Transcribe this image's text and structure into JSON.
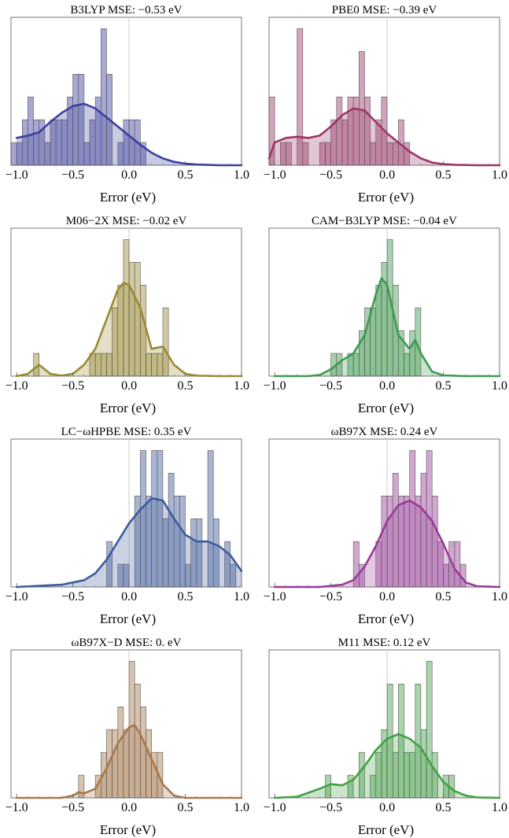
{
  "figure": {
    "xlabel": "Error (eV)",
    "xticks": [
      "−1.0",
      "−0.5",
      "0.0",
      "0.5",
      "1.0"
    ]
  },
  "chart_data": [
    {
      "type": "histogram",
      "title": "B3LYP MSE: −0.53 eV",
      "color": "#3b3f9e",
      "bin_width": 0.05,
      "xlim": [
        -1.05,
        1.0
      ],
      "xticks": [
        -1.0,
        -0.5,
        0.0,
        0.5,
        1.0
      ],
      "xlabel": "Error (eV)",
      "ymax": 6.5,
      "bins": [
        {
          "x": -1.05,
          "count": 1
        },
        {
          "x": -1.0,
          "count": 1
        },
        {
          "x": -0.95,
          "count": 2
        },
        {
          "x": -0.9,
          "count": 3
        },
        {
          "x": -0.85,
          "count": 2
        },
        {
          "x": -0.8,
          "count": 2
        },
        {
          "x": -0.75,
          "count": 1
        },
        {
          "x": -0.7,
          "count": 2
        },
        {
          "x": -0.65,
          "count": 2
        },
        {
          "x": -0.6,
          "count": 2
        },
        {
          "x": -0.55,
          "count": 3
        },
        {
          "x": -0.5,
          "count": 4
        },
        {
          "x": -0.45,
          "count": 4
        },
        {
          "x": -0.4,
          "count": 1
        },
        {
          "x": -0.35,
          "count": 2
        },
        {
          "x": -0.3,
          "count": 3
        },
        {
          "x": -0.25,
          "count": 6
        },
        {
          "x": -0.2,
          "count": 4
        },
        {
          "x": -0.1,
          "count": 1
        },
        {
          "x": -0.05,
          "count": 2
        },
        {
          "x": 0.0,
          "count": 2
        },
        {
          "x": 0.05,
          "count": 2
        },
        {
          "x": 0.1,
          "count": 1
        }
      ],
      "density": [
        [
          -1.0,
          1.2
        ],
        [
          -0.9,
          1.3
        ],
        [
          -0.8,
          1.45
        ],
        [
          -0.7,
          1.9
        ],
        [
          -0.6,
          2.3
        ],
        [
          -0.5,
          2.6
        ],
        [
          -0.4,
          2.7
        ],
        [
          -0.3,
          2.5
        ],
        [
          -0.2,
          2.1
        ],
        [
          -0.1,
          1.7
        ],
        [
          0.0,
          1.3
        ],
        [
          0.1,
          0.9
        ],
        [
          0.2,
          0.55
        ],
        [
          0.3,
          0.3
        ],
        [
          0.4,
          0.15
        ],
        [
          0.5,
          0.07
        ],
        [
          0.6,
          0.03
        ],
        [
          0.8,
          0.0
        ],
        [
          1.0,
          0.0
        ]
      ]
    },
    {
      "type": "histogram",
      "title": "PBE0 MSE: −0.39 eV",
      "color": "#9c3468",
      "bin_width": 0.05,
      "xlim": [
        -1.05,
        1.0
      ],
      "xticks": [
        -1.0,
        -0.5,
        0.0,
        0.5,
        1.0
      ],
      "xlabel": "Error (eV)",
      "ymax": 6.5,
      "bins": [
        {
          "x": -1.05,
          "count": 3
        },
        {
          "x": -0.95,
          "count": 1
        },
        {
          "x": -0.9,
          "count": 1
        },
        {
          "x": -0.8,
          "count": 6
        },
        {
          "x": -0.75,
          "count": 1
        },
        {
          "x": -0.6,
          "count": 1
        },
        {
          "x": -0.55,
          "count": 1
        },
        {
          "x": -0.5,
          "count": 2
        },
        {
          "x": -0.45,
          "count": 3
        },
        {
          "x": -0.4,
          "count": 2
        },
        {
          "x": -0.35,
          "count": 3
        },
        {
          "x": -0.3,
          "count": 3
        },
        {
          "x": -0.25,
          "count": 5
        },
        {
          "x": -0.2,
          "count": 3
        },
        {
          "x": -0.15,
          "count": 1
        },
        {
          "x": -0.1,
          "count": 2
        },
        {
          "x": -0.05,
          "count": 3
        },
        {
          "x": 0.0,
          "count": 1
        },
        {
          "x": 0.05,
          "count": 1
        },
        {
          "x": 0.1,
          "count": 2
        },
        {
          "x": 0.15,
          "count": 1
        }
      ],
      "density": [
        [
          -1.05,
          0.3
        ],
        [
          -1.0,
          1.0
        ],
        [
          -0.9,
          1.2
        ],
        [
          -0.8,
          1.25
        ],
        [
          -0.7,
          1.2
        ],
        [
          -0.6,
          1.3
        ],
        [
          -0.5,
          1.7
        ],
        [
          -0.4,
          2.2
        ],
        [
          -0.3,
          2.5
        ],
        [
          -0.2,
          2.4
        ],
        [
          -0.1,
          1.9
        ],
        [
          0.0,
          1.4
        ],
        [
          0.1,
          1.0
        ],
        [
          0.2,
          0.6
        ],
        [
          0.3,
          0.3
        ],
        [
          0.4,
          0.12
        ],
        [
          0.5,
          0.05
        ],
        [
          0.6,
          0.02
        ],
        [
          0.8,
          0.0
        ],
        [
          1.0,
          0.0
        ]
      ]
    },
    {
      "type": "histogram",
      "title": "M06−2X MSE: −0.02 eV",
      "color": "#9a8a30",
      "bin_width": 0.05,
      "xlim": [
        -1.05,
        1.0
      ],
      "xticks": [
        -1.0,
        -0.5,
        0.0,
        0.5,
        1.0
      ],
      "xlabel": "Error (eV)",
      "ymax": 6.5,
      "bins": [
        {
          "x": -0.85,
          "count": 1
        },
        {
          "x": -0.35,
          "count": 1
        },
        {
          "x": -0.3,
          "count": 1
        },
        {
          "x": -0.25,
          "count": 1
        },
        {
          "x": -0.2,
          "count": 1
        },
        {
          "x": -0.15,
          "count": 3
        },
        {
          "x": -0.1,
          "count": 4
        },
        {
          "x": -0.05,
          "count": 6
        },
        {
          "x": 0.0,
          "count": 5
        },
        {
          "x": 0.05,
          "count": 5
        },
        {
          "x": 0.1,
          "count": 4
        },
        {
          "x": 0.15,
          "count": 1
        },
        {
          "x": 0.2,
          "count": 1
        },
        {
          "x": 0.25,
          "count": 1
        },
        {
          "x": 0.3,
          "count": 3
        }
      ],
      "density": [
        [
          -1.0,
          0.0
        ],
        [
          -0.9,
          0.1
        ],
        [
          -0.8,
          0.5
        ],
        [
          -0.7,
          0.1
        ],
        [
          -0.6,
          0.02
        ],
        [
          -0.5,
          0.1
        ],
        [
          -0.4,
          0.5
        ],
        [
          -0.3,
          1.2
        ],
        [
          -0.2,
          2.5
        ],
        [
          -0.1,
          3.8
        ],
        [
          -0.05,
          4.1
        ],
        [
          0.0,
          4.0
        ],
        [
          0.1,
          3.0
        ],
        [
          0.2,
          1.2
        ],
        [
          0.3,
          1.3
        ],
        [
          0.4,
          0.5
        ],
        [
          0.5,
          0.1
        ],
        [
          0.6,
          0.02
        ],
        [
          0.8,
          0.0
        ],
        [
          1.0,
          0.0
        ]
      ]
    },
    {
      "type": "histogram",
      "title": "CAM−B3LYP MSE: −0.04 eV",
      "color": "#3e9a4e",
      "bin_width": 0.05,
      "xlim": [
        -1.05,
        1.0
      ],
      "xticks": [
        -1.0,
        -0.5,
        0.0,
        0.5,
        1.0
      ],
      "xlabel": "Error (eV)",
      "ymax": 6.5,
      "bins": [
        {
          "x": -0.5,
          "count": 1
        },
        {
          "x": -0.45,
          "count": 1
        },
        {
          "x": -0.35,
          "count": 1
        },
        {
          "x": -0.3,
          "count": 1
        },
        {
          "x": -0.25,
          "count": 2
        },
        {
          "x": -0.2,
          "count": 3
        },
        {
          "x": -0.15,
          "count": 3
        },
        {
          "x": -0.1,
          "count": 4
        },
        {
          "x": -0.05,
          "count": 5
        },
        {
          "x": 0.0,
          "count": 6
        },
        {
          "x": 0.05,
          "count": 4
        },
        {
          "x": 0.1,
          "count": 2
        },
        {
          "x": 0.15,
          "count": 1
        },
        {
          "x": 0.2,
          "count": 2
        },
        {
          "x": 0.25,
          "count": 3
        }
      ],
      "density": [
        [
          -1.0,
          0.0
        ],
        [
          -0.7,
          0.0
        ],
        [
          -0.6,
          0.05
        ],
        [
          -0.5,
          0.3
        ],
        [
          -0.4,
          0.7
        ],
        [
          -0.3,
          1.0
        ],
        [
          -0.2,
          1.8
        ],
        [
          -0.1,
          3.6
        ],
        [
          -0.05,
          4.3
        ],
        [
          0.0,
          4.0
        ],
        [
          0.1,
          1.8
        ],
        [
          0.2,
          1.2
        ],
        [
          0.25,
          1.6
        ],
        [
          0.3,
          1.0
        ],
        [
          0.4,
          0.2
        ],
        [
          0.5,
          0.03
        ],
        [
          0.7,
          0.0
        ],
        [
          1.0,
          0.0
        ]
      ]
    },
    {
      "type": "histogram",
      "title": "LC−ωHPBE MSE: 0.35 eV",
      "color": "#3d5b9c",
      "bin_width": 0.05,
      "xlim": [
        -1.05,
        1.0
      ],
      "xticks": [
        -1.0,
        -0.5,
        0.0,
        0.5,
        1.0
      ],
      "xlabel": "Error (eV)",
      "ymax": 6.5,
      "bins": [
        {
          "x": -0.2,
          "count": 2
        },
        {
          "x": -0.1,
          "count": 1
        },
        {
          "x": -0.05,
          "count": 1
        },
        {
          "x": 0.05,
          "count": 4
        },
        {
          "x": 0.1,
          "count": 6
        },
        {
          "x": 0.15,
          "count": 4
        },
        {
          "x": 0.2,
          "count": 6
        },
        {
          "x": 0.25,
          "count": 6
        },
        {
          "x": 0.3,
          "count": 3
        },
        {
          "x": 0.35,
          "count": 5
        },
        {
          "x": 0.4,
          "count": 4
        },
        {
          "x": 0.45,
          "count": 4
        },
        {
          "x": 0.5,
          "count": 1
        },
        {
          "x": 0.55,
          "count": 3
        },
        {
          "x": 0.6,
          "count": 3
        },
        {
          "x": 0.7,
          "count": 6
        },
        {
          "x": 0.75,
          "count": 3
        },
        {
          "x": 0.85,
          "count": 2
        },
        {
          "x": 0.9,
          "count": 1
        }
      ],
      "density": [
        [
          -1.0,
          0.0
        ],
        [
          -0.6,
          0.1
        ],
        [
          -0.4,
          0.3
        ],
        [
          -0.3,
          0.6
        ],
        [
          -0.2,
          1.2
        ],
        [
          -0.1,
          2.0
        ],
        [
          0.0,
          2.8
        ],
        [
          0.1,
          3.4
        ],
        [
          0.2,
          3.9
        ],
        [
          0.3,
          3.8
        ],
        [
          0.4,
          3.0
        ],
        [
          0.5,
          2.3
        ],
        [
          0.6,
          2.0
        ],
        [
          0.7,
          2.0
        ],
        [
          0.8,
          1.8
        ],
        [
          0.9,
          1.4
        ],
        [
          1.0,
          0.7
        ]
      ]
    },
    {
      "type": "histogram",
      "title": "ωB97X MSE: 0.24 eV",
      "color": "#993a98",
      "bin_width": 0.05,
      "xlim": [
        -1.05,
        1.0
      ],
      "xticks": [
        -1.0,
        -0.5,
        0.0,
        0.5,
        1.0
      ],
      "xlabel": "Error (eV)",
      "ymax": 6.5,
      "bins": [
        {
          "x": -0.3,
          "count": 2
        },
        {
          "x": -0.25,
          "count": 1
        },
        {
          "x": -0.1,
          "count": 2
        },
        {
          "x": -0.05,
          "count": 4
        },
        {
          "x": 0.0,
          "count": 4
        },
        {
          "x": 0.05,
          "count": 5
        },
        {
          "x": 0.1,
          "count": 4
        },
        {
          "x": 0.15,
          "count": 4
        },
        {
          "x": 0.2,
          "count": 6
        },
        {
          "x": 0.25,
          "count": 4
        },
        {
          "x": 0.3,
          "count": 5
        },
        {
          "x": 0.35,
          "count": 6
        },
        {
          "x": 0.4,
          "count": 4
        },
        {
          "x": 0.45,
          "count": 2
        },
        {
          "x": 0.5,
          "count": 1
        },
        {
          "x": 0.55,
          "count": 2
        },
        {
          "x": 0.6,
          "count": 2
        },
        {
          "x": 0.65,
          "count": 1
        }
      ],
      "density": [
        [
          -1.0,
          0.0
        ],
        [
          -0.6,
          0.0
        ],
        [
          -0.4,
          0.1
        ],
        [
          -0.3,
          0.3
        ],
        [
          -0.2,
          0.9
        ],
        [
          -0.1,
          1.8
        ],
        [
          0.0,
          2.9
        ],
        [
          0.1,
          3.6
        ],
        [
          0.2,
          3.8
        ],
        [
          0.3,
          3.5
        ],
        [
          0.4,
          2.9
        ],
        [
          0.5,
          1.9
        ],
        [
          0.6,
          0.8
        ],
        [
          0.7,
          0.2
        ],
        [
          0.8,
          0.03
        ],
        [
          1.0,
          0.0
        ]
      ]
    },
    {
      "type": "histogram",
      "title": "ωB97X−D MSE: 0. eV",
      "color": "#a7784a",
      "bin_width": 0.05,
      "xlim": [
        -1.05,
        1.0
      ],
      "xticks": [
        -1.0,
        -0.5,
        0.0,
        0.5,
        1.0
      ],
      "xlabel": "Error (eV)",
      "ymax": 6.5,
      "bins": [
        {
          "x": -0.45,
          "count": 1
        },
        {
          "x": -0.3,
          "count": 1
        },
        {
          "x": -0.25,
          "count": 2
        },
        {
          "x": -0.2,
          "count": 3
        },
        {
          "x": -0.15,
          "count": 3
        },
        {
          "x": -0.1,
          "count": 4
        },
        {
          "x": -0.05,
          "count": 3
        },
        {
          "x": 0.0,
          "count": 6
        },
        {
          "x": 0.05,
          "count": 5
        },
        {
          "x": 0.1,
          "count": 4
        },
        {
          "x": 0.15,
          "count": 3
        },
        {
          "x": 0.2,
          "count": 2
        },
        {
          "x": 0.25,
          "count": 2
        }
      ],
      "density": [
        [
          -1.0,
          0.0
        ],
        [
          -0.6,
          0.0
        ],
        [
          -0.5,
          0.1
        ],
        [
          -0.45,
          0.25
        ],
        [
          -0.4,
          0.2
        ],
        [
          -0.3,
          0.4
        ],
        [
          -0.2,
          1.3
        ],
        [
          -0.1,
          2.4
        ],
        [
          0.0,
          3.1
        ],
        [
          0.05,
          3.2
        ],
        [
          0.1,
          2.8
        ],
        [
          0.2,
          1.7
        ],
        [
          0.3,
          0.6
        ],
        [
          0.4,
          0.1
        ],
        [
          0.5,
          0.0
        ],
        [
          1.0,
          0.0
        ]
      ]
    },
    {
      "type": "histogram",
      "title": "M11 MSE: 0.12 eV",
      "color": "#43a044",
      "bin_width": 0.05,
      "xlim": [
        -1.05,
        1.0
      ],
      "xticks": [
        -1.0,
        -0.5,
        0.0,
        0.5,
        1.0
      ],
      "xlabel": "Error (eV)",
      "ymax": 6.5,
      "bins": [
        {
          "x": -0.55,
          "count": 1
        },
        {
          "x": -0.35,
          "count": 1
        },
        {
          "x": -0.25,
          "count": 2
        },
        {
          "x": -0.15,
          "count": 1
        },
        {
          "x": -0.1,
          "count": 2
        },
        {
          "x": -0.05,
          "count": 3
        },
        {
          "x": 0.0,
          "count": 5
        },
        {
          "x": 0.05,
          "count": 2
        },
        {
          "x": 0.1,
          "count": 5
        },
        {
          "x": 0.15,
          "count": 2
        },
        {
          "x": 0.2,
          "count": 2
        },
        {
          "x": 0.25,
          "count": 5
        },
        {
          "x": 0.3,
          "count": 3
        },
        {
          "x": 0.35,
          "count": 6
        },
        {
          "x": 0.4,
          "count": 2
        },
        {
          "x": 0.5,
          "count": 1
        },
        {
          "x": 0.55,
          "count": 1
        }
      ],
      "density": [
        [
          -1.0,
          0.0
        ],
        [
          -0.8,
          0.05
        ],
        [
          -0.6,
          0.4
        ],
        [
          -0.5,
          0.6
        ],
        [
          -0.4,
          0.55
        ],
        [
          -0.3,
          0.8
        ],
        [
          -0.2,
          1.4
        ],
        [
          -0.1,
          2.1
        ],
        [
          0.0,
          2.6
        ],
        [
          0.1,
          2.8
        ],
        [
          0.2,
          2.6
        ],
        [
          0.3,
          2.2
        ],
        [
          0.4,
          1.4
        ],
        [
          0.5,
          0.7
        ],
        [
          0.6,
          0.3
        ],
        [
          0.7,
          0.1
        ],
        [
          0.8,
          0.02
        ],
        [
          1.0,
          0.0
        ]
      ]
    }
  ]
}
